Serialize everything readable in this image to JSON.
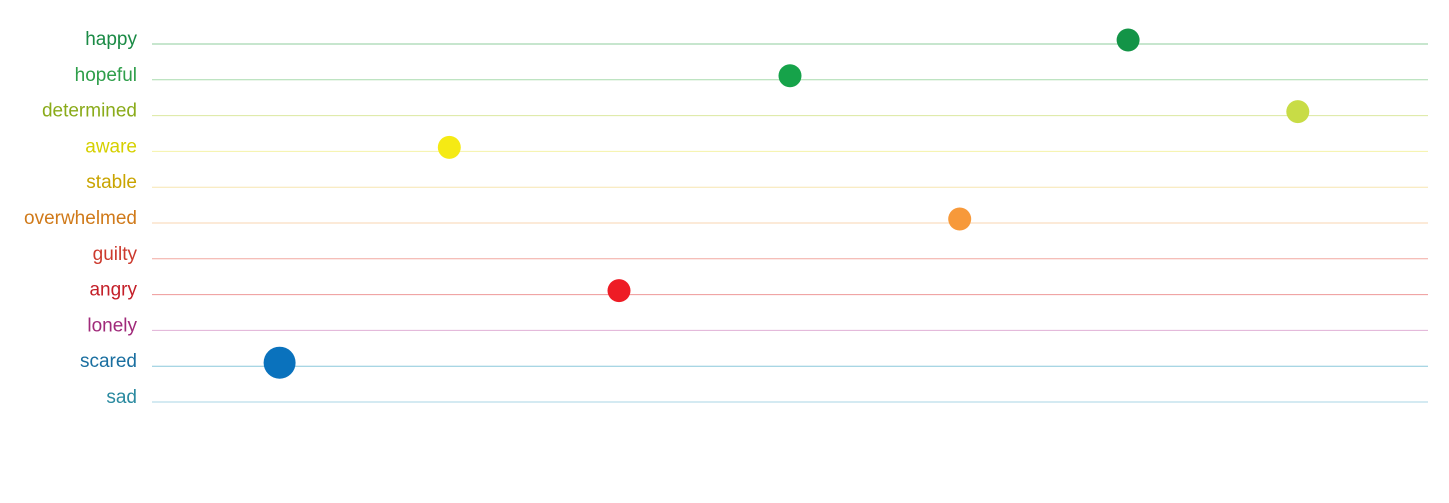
{
  "chart_data": {
    "type": "scatter",
    "title": "",
    "xlabel": "",
    "ylabel": "",
    "grid": true,
    "legend": "none",
    "xlim": [
      0,
      1
    ],
    "categories": [
      "happy",
      "hopeful",
      "determined",
      "aware",
      "stable",
      "overwhelmed",
      "guilty",
      "angry",
      "lonely",
      "scared",
      "sad"
    ],
    "colors": [
      "#1a8a45",
      "#2e9e4a",
      "#8aab1a",
      "#d6d000",
      "#c9a400",
      "#d07a1a",
      "#cc3a2e",
      "#c41f28",
      "#a02a7a",
      "#1a6fa0",
      "#2a8aa0"
    ],
    "line_colors": [
      "#8fcc9e",
      "#a9dcae",
      "#dbe8a0",
      "#f5f2a8",
      "#f7e6b0",
      "#f8d6b0",
      "#f2a8a0",
      "#ee9898",
      "#e0b0d6",
      "#8cc8dc",
      "#a8d4e6"
    ],
    "points": [
      {
        "category": "happy",
        "x": 0.765,
        "size": "medium",
        "color": "#139447"
      },
      {
        "category": "hopeful",
        "x": 0.5,
        "size": "medium",
        "color": "#16a34a"
      },
      {
        "category": "determined",
        "x": 0.898,
        "size": "medium",
        "color": "#c8dc46"
      },
      {
        "category": "aware",
        "x": 0.233,
        "size": "medium",
        "color": "#f5ea14"
      },
      {
        "category": "overwhelmed",
        "x": 0.633,
        "size": "medium",
        "color": "#f7993a"
      },
      {
        "category": "angry",
        "x": 0.366,
        "size": "medium",
        "color": "#ee1c25"
      },
      {
        "category": "scared",
        "x": 0.1,
        "size": "large",
        "color": "#0a72bd"
      }
    ]
  }
}
